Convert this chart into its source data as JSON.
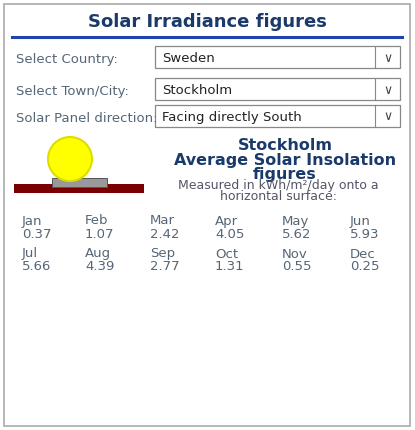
{
  "title": "Solar Irradiance figures",
  "title_color": "#1a3a6b",
  "bg_color": "#ffffff",
  "border_color": "#aaaaaa",
  "label_country": "Select Country:",
  "dropdown_country": "Sweden",
  "label_city": "Select Town/City:",
  "dropdown_city": "Stockholm",
  "label_direction": "Solar Panel direction:",
  "dropdown_direction": "Facing directly South",
  "sun_color": "#ffff00",
  "sun_edge_color": "#dddd00",
  "bar_color": "#7a0000",
  "panel_fill": "#999999",
  "panel_edge": "#555555",
  "insolation_line1": "Stockholm",
  "insolation_line2": "Average Solar Insolation",
  "insolation_line3": "figures",
  "insolation_color": "#1a3a6b",
  "measure_line1": "Measured in kWh/m²/day onto a",
  "measure_line2": "horizontal surface:",
  "measure_color": "#555566",
  "months_row1": [
    "Jan",
    "Feb",
    "Mar",
    "Apr",
    "May",
    "Jun"
  ],
  "values_row1": [
    "0.37",
    "1.07",
    "2.42",
    "4.05",
    "5.62",
    "5.93"
  ],
  "months_row2": [
    "Jul",
    "Aug",
    "Sep",
    "Oct",
    "Nov",
    "Dec"
  ],
  "values_row2": [
    "5.66",
    "4.39",
    "2.77",
    "1.31",
    "0.55",
    "0.25"
  ],
  "month_color": "#556677",
  "value_color": "#556677",
  "separator_color": "#2244aa",
  "dropdown_border": "#888888",
  "label_color": "#556677",
  "arrow_color": "#444444"
}
